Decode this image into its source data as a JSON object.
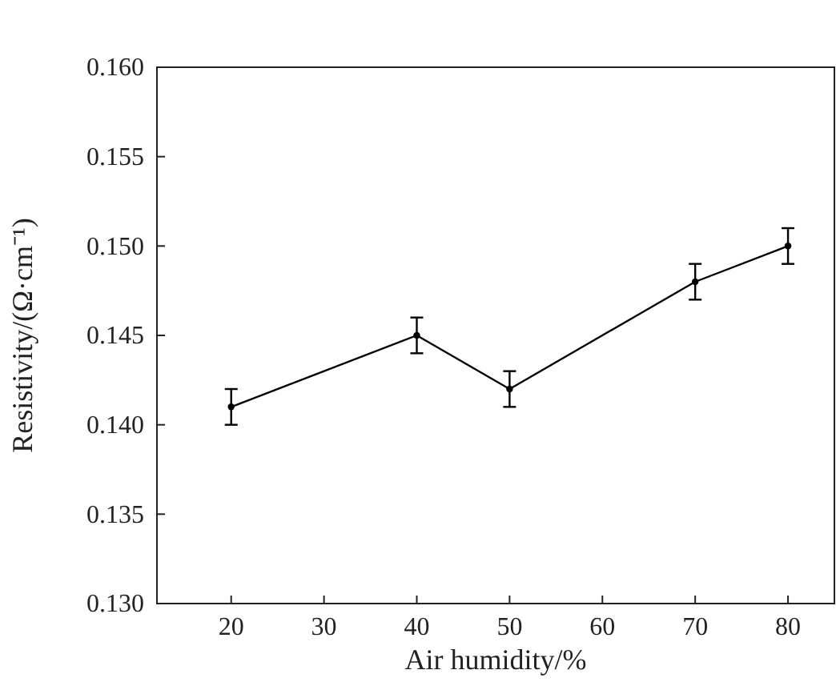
{
  "chart_data": {
    "type": "line",
    "xlabel": "Air humidity/%",
    "ylabel": "Resistivity/(Ω·cm⁻¹)",
    "x": [
      20,
      40,
      50,
      70,
      80
    ],
    "series": [
      {
        "color": "#000000",
        "values": [
          0.141,
          0.145,
          0.142,
          0.148,
          0.15
        ],
        "errors": [
          0.001,
          0.001,
          0.001,
          0.001,
          0.001
        ]
      }
    ],
    "xlim": [
      12,
      85
    ],
    "xticks": [
      20,
      30,
      40,
      50,
      60,
      70,
      80
    ],
    "ylim": [
      0.13,
      0.16
    ],
    "yticks": [
      {
        "value": 0.13,
        "label": "0.130"
      },
      {
        "value": 0.135,
        "label": "0.135"
      },
      {
        "value": 0.14,
        "label": "0.140"
      },
      {
        "value": 0.145,
        "label": "0.145"
      },
      {
        "value": 0.15,
        "label": "0.150"
      },
      {
        "value": 0.155,
        "label": "0.155"
      },
      {
        "value": 0.16,
        "label": "0.160"
      }
    ],
    "marker": "circle",
    "line_style": "solid",
    "grid": false
  }
}
